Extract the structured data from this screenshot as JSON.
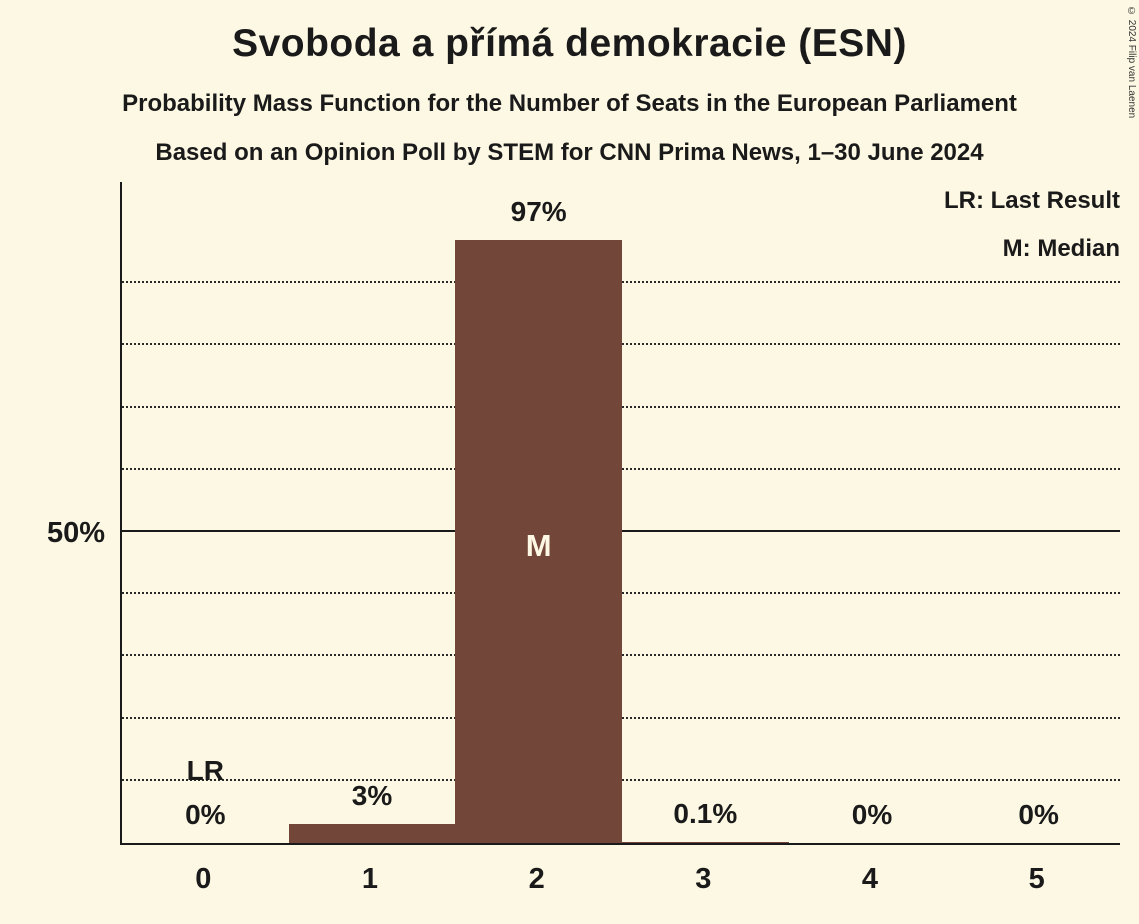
{
  "chart_data": {
    "type": "bar",
    "title": "Svoboda a přímá demokracie (ESN)",
    "subtitle1": "Probability Mass Function for the Number of Seats in the European Parliament",
    "subtitle2": "Based on an Opinion Poll by STEM for CNN Prima News, 1–30 June 2024",
    "xlabel": "",
    "ylabel": "",
    "categories": [
      "0",
      "1",
      "2",
      "3",
      "4",
      "5"
    ],
    "values": [
      0,
      3,
      97,
      0.1,
      0,
      0
    ],
    "value_labels": [
      "0%",
      "3%",
      "97%",
      "0.1%",
      "0%",
      "0%"
    ],
    "ylim": [
      0,
      100
    ],
    "y_major": {
      "value": 50,
      "label": "50%"
    },
    "gridlines": [
      10,
      20,
      30,
      40,
      60,
      70,
      80,
      90
    ],
    "grid": "dotted",
    "median_index": 2,
    "median_marker": "M",
    "last_result_index": 0,
    "last_result_marker": "LR",
    "legend": [
      {
        "label": "LR: Last Result"
      },
      {
        "label": "M: Median"
      }
    ],
    "legend_position": "top-right",
    "copyright": "© 2024 Filip van Laenen",
    "colors": {
      "background": "#fdf8e3",
      "bar": "#73463a",
      "text": "#1a1a1a",
      "median_text": "#fdf8e3",
      "grid": "#2a2a2a"
    }
  }
}
